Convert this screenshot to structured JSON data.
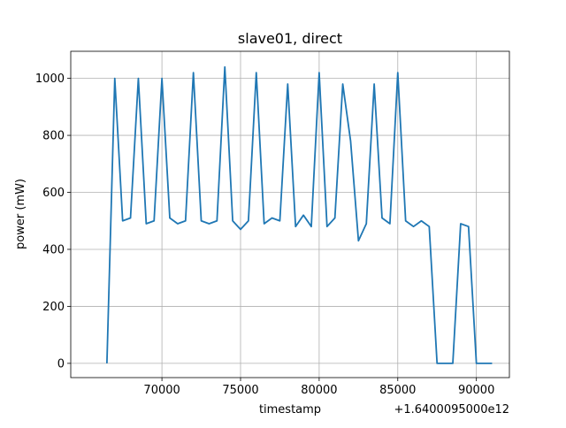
{
  "chart_data": {
    "type": "line",
    "title": "slave01, direct",
    "xlabel": "timestamp",
    "ylabel": "power (mW)",
    "x_offset_label": "+1.6400095000e12",
    "xlim": [
      64200,
      92100
    ],
    "ylim": [
      -50,
      1095
    ],
    "x_ticks": [
      70000,
      75000,
      80000,
      85000,
      90000
    ],
    "x_tick_labels": [
      "70000",
      "75000",
      "80000",
      "85000",
      "90000"
    ],
    "y_ticks": [
      0,
      200,
      400,
      600,
      800,
      1000
    ],
    "y_tick_labels": [
      "0",
      "200",
      "400",
      "600",
      "800",
      "1000"
    ],
    "grid": true,
    "series": [
      {
        "color": "#1f77b4",
        "x": [
          66500,
          66700,
          67000,
          67500,
          68000,
          68500,
          69000,
          69500,
          70000,
          70500,
          71000,
          71500,
          72000,
          72500,
          73000,
          73500,
          74000,
          74500,
          75000,
          75500,
          76000,
          76500,
          77000,
          77500,
          78000,
          78500,
          79000,
          79500,
          80000,
          80500,
          81000,
          81500,
          82000,
          82500,
          83000,
          83500,
          84000,
          84500,
          85000,
          85500,
          86000,
          86500,
          87000,
          87500,
          88000,
          88500,
          89000,
          89500,
          90000,
          90500,
          91000
        ],
        "y": [
          0,
          400,
          1000,
          500,
          510,
          1000,
          490,
          500,
          1000,
          510,
          490,
          500,
          1020,
          500,
          490,
          500,
          1040,
          500,
          470,
          500,
          1020,
          490,
          510,
          500,
          980,
          480,
          520,
          480,
          1020,
          480,
          510,
          980,
          780,
          430,
          490,
          980,
          510,
          490,
          1020,
          500,
          480,
          500,
          480,
          0,
          0,
          0,
          490,
          480,
          0,
          0,
          0
        ]
      }
    ]
  }
}
